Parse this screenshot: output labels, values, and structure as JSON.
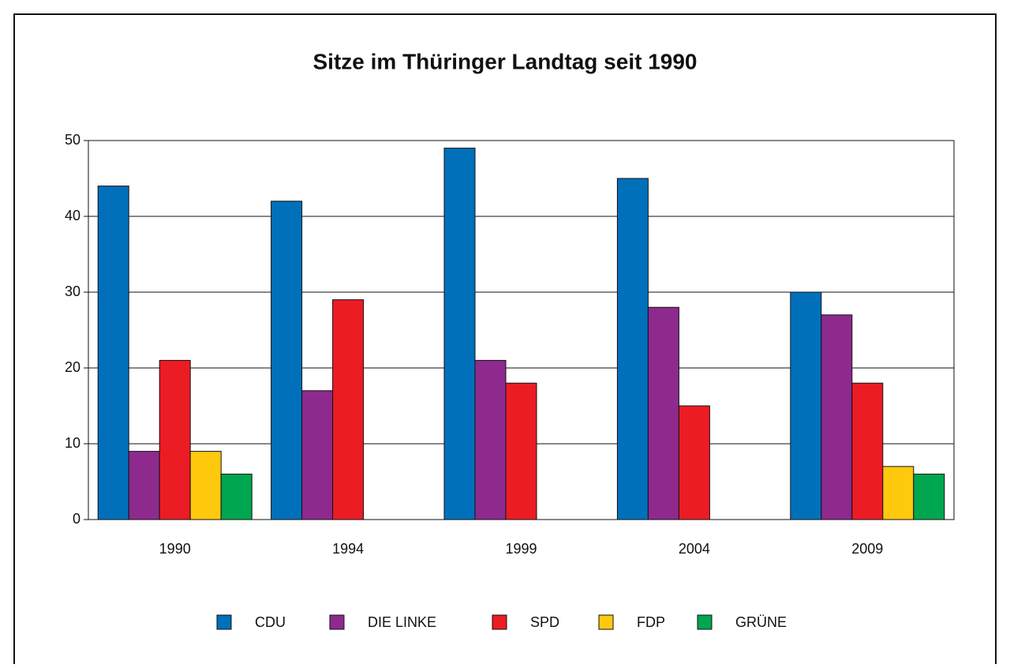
{
  "chart_data": {
    "type": "bar",
    "title": "Sitze im Thüringer Landtag seit 1990",
    "categories": [
      "1990",
      "1994",
      "1999",
      "2004",
      "2009"
    ],
    "series": [
      {
        "name": "CDU",
        "color": "#0070bb",
        "values": [
          44,
          42,
          49,
          45,
          30
        ]
      },
      {
        "name": "DIE LINKE",
        "color": "#8e2a8e",
        "values": [
          9,
          17,
          21,
          28,
          27
        ]
      },
      {
        "name": "SPD",
        "color": "#ec1c24",
        "values": [
          21,
          29,
          18,
          15,
          18
        ]
      },
      {
        "name": "FDP",
        "color": "#ffc90e",
        "values": [
          9,
          0,
          0,
          0,
          7
        ]
      },
      {
        "name": "GRÜNE",
        "color": "#00a650",
        "values": [
          6,
          0,
          0,
          0,
          6
        ]
      }
    ],
    "ylim": [
      0,
      50
    ],
    "yticks": [
      0,
      10,
      20,
      30,
      40,
      50
    ],
    "grid": true,
    "legend": "bottom"
  }
}
